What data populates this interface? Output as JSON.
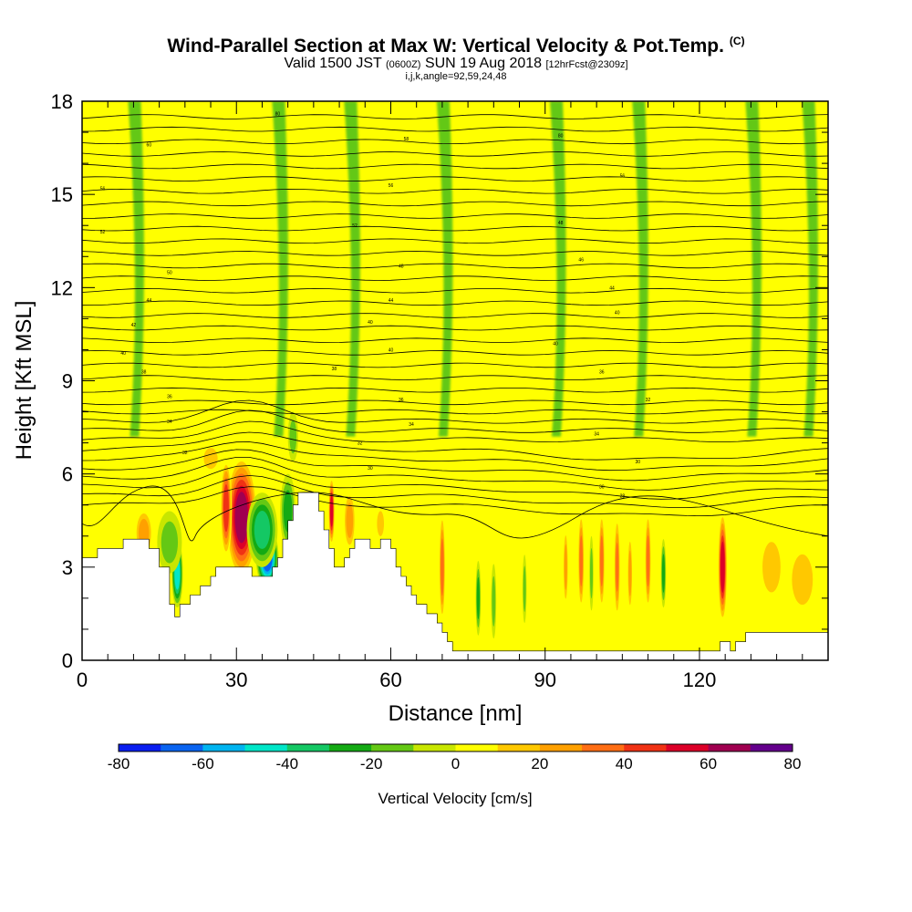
{
  "header": {
    "title_main": "Wind-Parallel Section at Max W: Vertical Velocity & Pot.Temp.",
    "title_units": "(C)",
    "valid_prefix": "Valid 1500 JST",
    "valid_utc": "(0600Z)",
    "valid_date": "SUN 19 Aug 2018",
    "forecast": "[12hrFcst@2309z]",
    "grid_info": "i,j,k,angle=92,59,24,48"
  },
  "chart_data": {
    "type": "heatmap",
    "xlabel": "Distance [nm]",
    "ylabel": "Height [Kft MSL]",
    "xlim": [
      0,
      145
    ],
    "ylim": [
      0,
      18
    ],
    "xticks": [
      0,
      30,
      60,
      90,
      120
    ],
    "yticks": [
      0,
      3,
      6,
      9,
      12,
      15,
      18
    ],
    "colorbar": {
      "label": "Vertical Velocity [cm/s]",
      "ticks": [
        -80,
        -60,
        -40,
        -20,
        0,
        20,
        40,
        60,
        80
      ],
      "bounds": [
        -80,
        80
      ],
      "colors": [
        "#0a1ef0",
        "#0a64f0",
        "#00b4f0",
        "#00e6c8",
        "#14c864",
        "#14aa14",
        "#64c814",
        "#c8e600",
        "#ffff00",
        "#ffc800",
        "#ffa000",
        "#ff6e14",
        "#f03214",
        "#dc0028",
        "#a00050",
        "#64008c"
      ]
    },
    "background_w": 3,
    "terrain": [
      [
        0,
        3.3
      ],
      [
        3,
        3.3
      ],
      [
        3,
        3.6
      ],
      [
        8,
        3.6
      ],
      [
        8,
        3.9
      ],
      [
        13,
        3.9
      ],
      [
        13,
        3.6
      ],
      [
        15,
        3.6
      ],
      [
        15,
        3.0
      ],
      [
        17,
        3.0
      ],
      [
        17,
        1.8
      ],
      [
        18,
        1.8
      ],
      [
        18,
        1.4
      ],
      [
        19,
        1.4
      ],
      [
        19,
        1.8
      ],
      [
        21,
        1.8
      ],
      [
        21,
        2.1
      ],
      [
        23,
        2.1
      ],
      [
        23,
        2.4
      ],
      [
        25,
        2.4
      ],
      [
        25,
        2.7
      ],
      [
        26,
        2.7
      ],
      [
        26,
        3.0
      ],
      [
        33,
        3.0
      ],
      [
        33,
        2.7
      ],
      [
        37,
        2.7
      ],
      [
        37,
        3.0
      ],
      [
        38,
        3.0
      ],
      [
        38,
        3.3
      ],
      [
        39,
        3.3
      ],
      [
        39,
        3.9
      ],
      [
        40,
        3.9
      ],
      [
        40,
        4.5
      ],
      [
        41,
        4.5
      ],
      [
        41,
        5.0
      ],
      [
        42,
        5.0
      ],
      [
        42,
        5.4
      ],
      [
        46,
        5.4
      ],
      [
        46,
        4.8
      ],
      [
        47,
        4.8
      ],
      [
        47,
        4.2
      ],
      [
        48,
        4.2
      ],
      [
        48,
        3.6
      ],
      [
        49,
        3.6
      ],
      [
        49,
        3.0
      ],
      [
        51,
        3.0
      ],
      [
        51,
        3.3
      ],
      [
        52,
        3.3
      ],
      [
        52,
        3.6
      ],
      [
        53,
        3.6
      ],
      [
        53,
        3.9
      ],
      [
        56,
        3.9
      ],
      [
        56,
        3.6
      ],
      [
        58,
        3.6
      ],
      [
        58,
        3.9
      ],
      [
        60,
        3.9
      ],
      [
        60,
        3.6
      ],
      [
        61,
        3.6
      ],
      [
        61,
        3.0
      ],
      [
        62,
        3.0
      ],
      [
        62,
        2.7
      ],
      [
        63,
        2.7
      ],
      [
        63,
        2.4
      ],
      [
        64,
        2.4
      ],
      [
        64,
        2.1
      ],
      [
        65,
        2.1
      ],
      [
        65,
        1.8
      ],
      [
        67,
        1.8
      ],
      [
        67,
        1.5
      ],
      [
        69,
        1.5
      ],
      [
        69,
        1.2
      ],
      [
        70,
        1.2
      ],
      [
        70,
        0.9
      ],
      [
        71,
        0.9
      ],
      [
        71,
        0.6
      ],
      [
        72,
        0.6
      ],
      [
        72,
        0.3
      ],
      [
        124,
        0.3
      ],
      [
        124,
        0.6
      ],
      [
        126,
        0.6
      ],
      [
        126,
        0.3
      ],
      [
        127,
        0.3
      ],
      [
        127,
        0.6
      ],
      [
        129,
        0.6
      ],
      [
        129,
        0.9
      ],
      [
        145,
        0.9
      ],
      [
        145,
        1.3
      ],
      [
        145,
        0
      ],
      [
        0,
        0
      ]
    ],
    "w_cells": [
      {
        "x": 31,
        "y": 4.6,
        "rx": 2.8,
        "ry": 1.8,
        "w": 60
      },
      {
        "x": 28,
        "y": 4.9,
        "rx": 1.1,
        "ry": 1.6,
        "w": 42
      },
      {
        "x": 36,
        "y": 3.3,
        "rx": 2.2,
        "ry": 1.0,
        "w": -62
      },
      {
        "x": 35,
        "y": 4.2,
        "rx": 3.0,
        "ry": 1.2,
        "w": -36
      },
      {
        "x": 40,
        "y": 4.8,
        "rx": 1.5,
        "ry": 1.2,
        "w": -24
      },
      {
        "x": 18.5,
        "y": 2.8,
        "rx": 1.1,
        "ry": 1.1,
        "w": -42
      },
      {
        "x": 17,
        "y": 3.8,
        "rx": 2.4,
        "ry": 1.0,
        "w": -18
      },
      {
        "x": 12,
        "y": 4.1,
        "rx": 1.8,
        "ry": 0.8,
        "w": 24
      },
      {
        "x": 48.5,
        "y": 4.8,
        "rx": 0.6,
        "ry": 1.1,
        "w": 52
      },
      {
        "x": 52,
        "y": 4.5,
        "rx": 1.2,
        "ry": 1.0,
        "w": 22
      },
      {
        "x": 58,
        "y": 4.4,
        "rx": 1.0,
        "ry": 0.6,
        "w": 14
      },
      {
        "x": 70,
        "y": 3.0,
        "rx": 0.6,
        "ry": 1.8,
        "w": 38
      },
      {
        "x": 77,
        "y": 2.0,
        "rx": 0.5,
        "ry": 1.2,
        "w": -22
      },
      {
        "x": 80,
        "y": 1.9,
        "rx": 0.5,
        "ry": 1.2,
        "w": -16
      },
      {
        "x": 86,
        "y": 2.3,
        "rx": 0.4,
        "ry": 1.1,
        "w": -14
      },
      {
        "x": 94,
        "y": 3.0,
        "rx": 0.5,
        "ry": 1.3,
        "w": 28
      },
      {
        "x": 97,
        "y": 3.2,
        "rx": 0.6,
        "ry": 1.6,
        "w": 38
      },
      {
        "x": 99,
        "y": 2.8,
        "rx": 0.4,
        "ry": 1.2,
        "w": -18
      },
      {
        "x": 101,
        "y": 3.2,
        "rx": 0.6,
        "ry": 1.6,
        "w": 38
      },
      {
        "x": 104,
        "y": 3.0,
        "rx": 0.5,
        "ry": 1.4,
        "w": 30
      },
      {
        "x": 106.5,
        "y": 2.8,
        "rx": 0.5,
        "ry": 1.3,
        "w": 22
      },
      {
        "x": 110,
        "y": 3.2,
        "rx": 0.6,
        "ry": 1.6,
        "w": 38
      },
      {
        "x": 113,
        "y": 2.8,
        "rx": 0.5,
        "ry": 1.1,
        "w": -25
      },
      {
        "x": 124.5,
        "y": 3.0,
        "rx": 0.9,
        "ry": 1.8,
        "w": 52
      },
      {
        "x": 134,
        "y": 3.0,
        "rx": 2.6,
        "ry": 1.2,
        "w": 14
      },
      {
        "x": 140,
        "y": 2.6,
        "rx": 3.0,
        "ry": 1.2,
        "w": 12
      },
      {
        "x": 25,
        "y": 6.5,
        "rx": 2.0,
        "ry": 0.5,
        "w": 14
      },
      {
        "x": 41,
        "y": 7.2,
        "rx": 1.0,
        "ry": 0.8,
        "w": -14
      }
    ],
    "upper_streaks": [
      {
        "x": 10,
        "w": -14
      },
      {
        "x": 14,
        "w": 8
      },
      {
        "x": 25,
        "w": 8
      },
      {
        "x": 32,
        "w": 8
      },
      {
        "x": 38,
        "w": -12
      },
      {
        "x": 44,
        "w": 8
      },
      {
        "x": 52,
        "w": -14
      },
      {
        "x": 57,
        "w": 8
      },
      {
        "x": 64,
        "w": 8
      },
      {
        "x": 70,
        "w": -12
      },
      {
        "x": 76,
        "w": 8
      },
      {
        "x": 84,
        "w": 8
      },
      {
        "x": 92,
        "w": -12
      },
      {
        "x": 100,
        "w": 8
      },
      {
        "x": 108,
        "w": -14
      },
      {
        "x": 115,
        "w": 8
      },
      {
        "x": 124,
        "w": 8
      },
      {
        "x": 130,
        "w": -12
      },
      {
        "x": 137,
        "w": 8
      },
      {
        "x": 141,
        "w": -12
      }
    ],
    "isentropes": {
      "base_heights": [
        5.0,
        5.3,
        5.6,
        5.9,
        6.2,
        6.5,
        6.8,
        7.1,
        7.4,
        7.7,
        8.0,
        8.3,
        8.7,
        9.1,
        9.5,
        9.9,
        10.3,
        10.7,
        11.1,
        11.5,
        11.9,
        12.3,
        12.7,
        13.1,
        13.5,
        13.9,
        14.3,
        14.7,
        15.1,
        15.5,
        15.9,
        16.3,
        16.7,
        17.1,
        17.5
      ],
      "labels": [
        {
          "x": 38,
          "y": 17.6,
          "text": "80"
        },
        {
          "x": 13,
          "y": 16.6,
          "text": "60"
        },
        {
          "x": 63,
          "y": 16.8,
          "text": "58"
        },
        {
          "x": 93,
          "y": 16.9,
          "text": "80"
        },
        {
          "x": 4,
          "y": 15.2,
          "text": "56"
        },
        {
          "x": 60,
          "y": 15.3,
          "text": "56"
        },
        {
          "x": 105,
          "y": 15.6,
          "text": "56"
        },
        {
          "x": 4,
          "y": 13.8,
          "text": "52"
        },
        {
          "x": 53,
          "y": 14.0,
          "text": "52"
        },
        {
          "x": 93,
          "y": 14.1,
          "text": "48"
        },
        {
          "x": 17,
          "y": 12.5,
          "text": "50"
        },
        {
          "x": 62,
          "y": 12.7,
          "text": "48"
        },
        {
          "x": 97,
          "y": 12.9,
          "text": "46"
        },
        {
          "x": 13,
          "y": 11.6,
          "text": "44"
        },
        {
          "x": 60,
          "y": 11.6,
          "text": "44"
        },
        {
          "x": 103,
          "y": 12.0,
          "text": "44"
        },
        {
          "x": 10,
          "y": 10.8,
          "text": "42"
        },
        {
          "x": 56,
          "y": 10.9,
          "text": "40"
        },
        {
          "x": 104,
          "y": 11.2,
          "text": "40"
        },
        {
          "x": 8,
          "y": 9.9,
          "text": "40"
        },
        {
          "x": 60,
          "y": 10.0,
          "text": "40"
        },
        {
          "x": 92,
          "y": 10.2,
          "text": "40"
        },
        {
          "x": 12,
          "y": 9.3,
          "text": "38"
        },
        {
          "x": 49,
          "y": 9.4,
          "text": "38"
        },
        {
          "x": 101,
          "y": 9.3,
          "text": "36"
        },
        {
          "x": 17,
          "y": 8.5,
          "text": "36"
        },
        {
          "x": 62,
          "y": 8.4,
          "text": "36"
        },
        {
          "x": 110,
          "y": 8.4,
          "text": "32"
        },
        {
          "x": 17,
          "y": 7.7,
          "text": "34"
        },
        {
          "x": 64,
          "y": 7.6,
          "text": "34"
        },
        {
          "x": 100,
          "y": 7.3,
          "text": "34"
        },
        {
          "x": 20,
          "y": 6.7,
          "text": "32"
        },
        {
          "x": 54,
          "y": 7.0,
          "text": "32"
        },
        {
          "x": 108,
          "y": 6.4,
          "text": "30"
        },
        {
          "x": 56,
          "y": 6.2,
          "text": "30"
        },
        {
          "x": 101,
          "y": 5.6,
          "text": "30"
        },
        {
          "x": 105,
          "y": 5.3,
          "text": "28"
        }
      ]
    }
  }
}
